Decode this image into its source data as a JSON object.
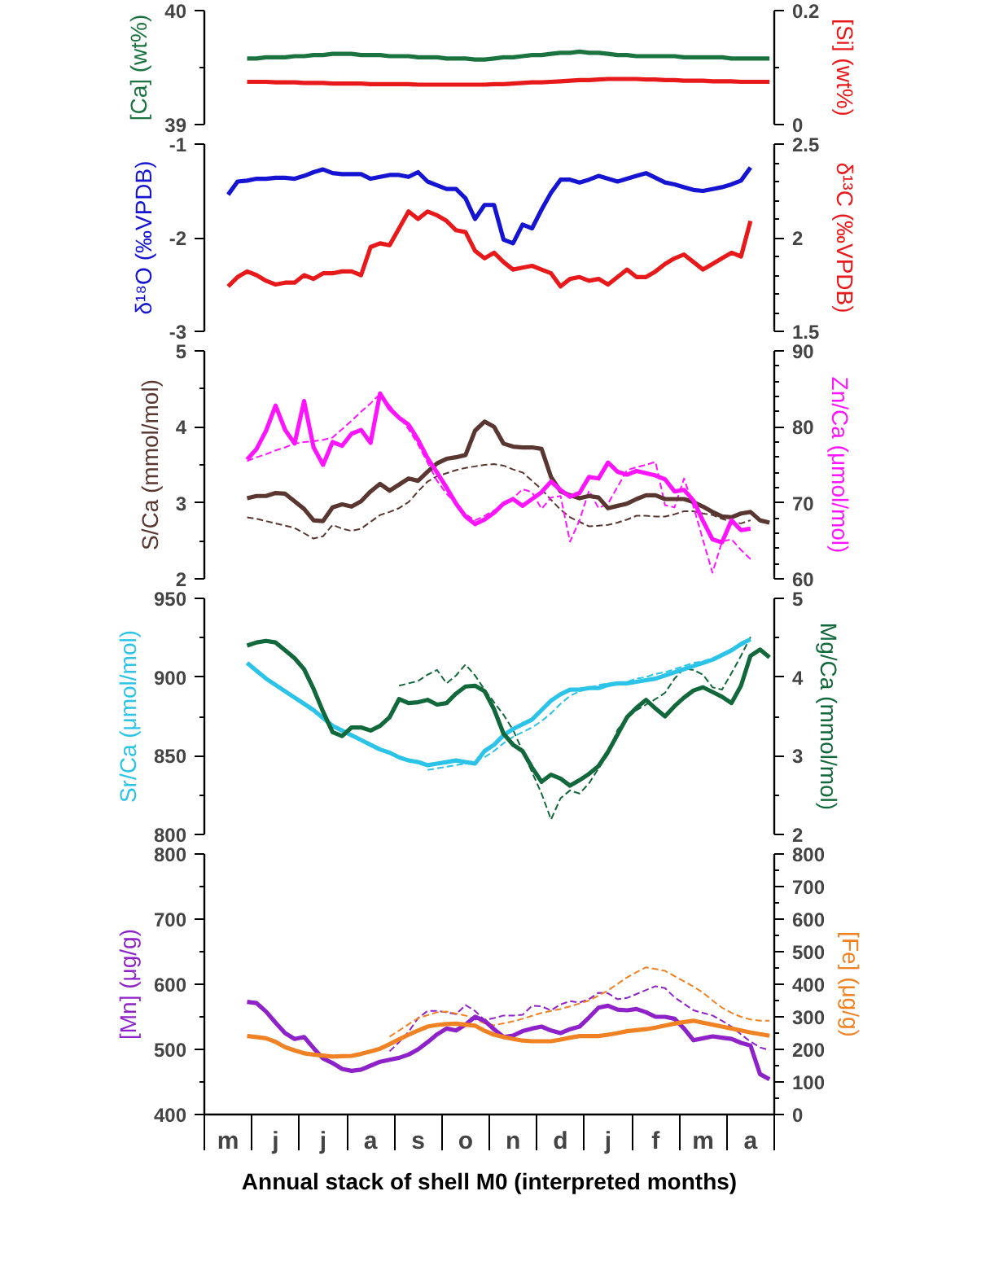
{
  "chart_data": [
    {
      "type": "line",
      "ylabel": "[Ca] (wt%)",
      "y2label": "[Si] (wt%)",
      "tick_labels": "y",
      "categories": [
        null,
        null,
        null,
        null,
        null,
        null,
        null,
        null,
        null,
        null,
        null,
        null,
        null,
        null,
        null,
        null,
        null,
        null,
        null,
        null,
        null,
        null,
        null,
        null,
        null,
        null,
        null,
        null,
        null,
        null,
        null,
        null,
        null,
        null,
        null,
        null,
        null,
        null,
        null,
        null,
        null,
        null,
        null,
        null,
        null,
        null,
        null,
        null,
        null,
        null,
        null,
        null,
        null,
        null,
        null,
        null,
        null,
        null,
        null,
        null
      ],
      "ylim": [
        39,
        40
      ],
      "yticks": [
        39,
        {
          "value": 39.5,
          "label": null
        },
        40
      ],
      "y2lim": [
        0,
        0.2
      ],
      "y2ticks": [
        0,
        {
          "value": 0.1,
          "label": null
        },
        0.2
      ],
      "series": [
        {
          "color": "#1b7340",
          "values": [
            null,
            null,
            null,
            null,
            39.58,
            39.58,
            39.59,
            39.59,
            39.59,
            39.6,
            39.6,
            39.61,
            39.61,
            39.62,
            39.62,
            39.62,
            39.61,
            39.61,
            39.61,
            39.6,
            39.6,
            39.6,
            39.59,
            39.59,
            39.59,
            39.58,
            39.58,
            39.58,
            39.57,
            39.57,
            39.58,
            39.59,
            39.59,
            39.6,
            39.61,
            39.61,
            39.62,
            39.63,
            39.63,
            39.64,
            39.63,
            39.63,
            39.62,
            39.61,
            39.61,
            39.6,
            39.6,
            39.6,
            39.6,
            39.6,
            39.59,
            39.59,
            39.59,
            39.59,
            39.59,
            39.58,
            39.58,
            39.58,
            39.58,
            39.58
          ]
        },
        {
          "color": "#e8191b",
          "axis": "y2",
          "values": [
            null,
            null,
            null,
            null,
            0.075,
            0.075,
            0.075,
            0.074,
            0.074,
            0.074,
            0.073,
            0.073,
            0.073,
            0.072,
            0.072,
            0.072,
            0.072,
            0.071,
            0.071,
            0.071,
            0.071,
            0.071,
            0.07,
            0.07,
            0.07,
            0.07,
            0.07,
            0.07,
            0.07,
            0.07,
            0.071,
            0.071,
            0.072,
            0.073,
            0.074,
            0.074,
            0.075,
            0.076,
            0.077,
            0.078,
            0.078,
            0.079,
            0.08,
            0.08,
            0.08,
            0.08,
            0.079,
            0.079,
            0.078,
            0.078,
            0.077,
            0.077,
            0.077,
            0.076,
            0.076,
            0.076,
            0.075,
            0.075,
            0.075,
            0.075
          ]
        }
      ]
    },
    {
      "type": "line",
      "ylabel": "δ¹⁸O (‰VPDB)",
      "y2label": "δ¹³C (‰VPDB)",
      "tick_labels": "y",
      "categories": [
        null,
        null,
        null,
        null,
        null,
        null,
        null,
        null,
        null,
        null,
        null,
        null,
        null,
        null,
        null,
        null,
        null,
        null,
        null,
        null,
        null,
        null,
        null,
        null,
        null,
        null,
        null,
        null,
        null,
        null,
        null,
        null,
        null,
        null,
        null,
        null,
        null,
        null,
        null,
        null,
        null,
        null,
        null,
        null,
        null,
        null,
        null,
        null,
        null,
        null,
        null,
        null,
        null,
        null,
        null,
        null,
        null,
        null,
        null,
        null
      ],
      "ylim": [
        -3,
        -1
      ],
      "yticks": [
        -3,
        -2,
        -1
      ],
      "y2lim": [
        1.5,
        2.5
      ],
      "y2ticks": [
        1.5,
        {
          "value": 1.6,
          "label": null
        },
        {
          "value": 1.7,
          "label": null
        },
        {
          "value": 1.8,
          "label": null
        },
        {
          "value": 1.9,
          "label": null
        },
        2,
        {
          "value": 2.1,
          "label": null
        },
        {
          "value": 2.2,
          "label": null
        },
        {
          "value": 2.3,
          "label": null
        },
        {
          "value": 2.4,
          "label": null
        },
        2.5
      ],
      "series": [
        {
          "color": "#1414d2",
          "values": [
            null,
            null,
            -1.54,
            -1.4,
            -1.39,
            -1.37,
            -1.37,
            -1.36,
            -1.36,
            -1.37,
            -1.34,
            -1.3,
            -1.27,
            -1.31,
            -1.32,
            -1.32,
            -1.32,
            -1.37,
            -1.35,
            -1.33,
            -1.33,
            -1.35,
            -1.3,
            -1.4,
            -1.44,
            -1.48,
            -1.48,
            -1.58,
            -1.8,
            -1.65,
            -1.65,
            -2.02,
            -2.06,
            -1.86,
            -1.9,
            -1.7,
            -1.52,
            -1.38,
            -1.38,
            -1.41,
            -1.38,
            -1.34,
            -1.37,
            -1.4,
            -1.37,
            -1.34,
            -1.31,
            -1.36,
            -1.41,
            -1.43,
            -1.46,
            -1.49,
            -1.5,
            -1.48,
            -1.46,
            -1.43,
            -1.39,
            -1.25,
            null,
            null
          ]
        },
        {
          "color": "#e8191b",
          "axis": "y2",
          "values": [
            null,
            null,
            1.74,
            1.79,
            1.82,
            1.8,
            1.77,
            1.75,
            1.76,
            1.76,
            1.8,
            1.78,
            1.81,
            1.81,
            1.82,
            1.82,
            1.8,
            1.95,
            1.97,
            1.96,
            2.05,
            2.14,
            2.1,
            2.14,
            2.12,
            2.09,
            2.04,
            2.03,
            1.93,
            1.89,
            1.92,
            1.87,
            1.83,
            1.84,
            1.85,
            1.83,
            1.81,
            1.74,
            1.78,
            1.79,
            1.77,
            1.78,
            1.75,
            1.79,
            1.83,
            1.79,
            1.79,
            1.82,
            1.86,
            1.89,
            1.91,
            1.87,
            1.83,
            1.86,
            1.89,
            1.92,
            1.9,
            2.09,
            null,
            null
          ]
        }
      ]
    },
    {
      "type": "line",
      "ylabel": "S/Ca (mmol/mol)",
      "y2label": "Zn/Ca (μmol/mol)",
      "tick_labels": "y",
      "categories": [
        null,
        null,
        null,
        null,
        null,
        null,
        null,
        null,
        null,
        null,
        null,
        null,
        null,
        null,
        null,
        null,
        null,
        null,
        null,
        null,
        null,
        null,
        null,
        null,
        null,
        null,
        null,
        null,
        null,
        null,
        null,
        null,
        null,
        null,
        null,
        null,
        null,
        null,
        null,
        null,
        null,
        null,
        null,
        null,
        null,
        null,
        null,
        null,
        null,
        null,
        null,
        null,
        null,
        null,
        null,
        null,
        null,
        null,
        null,
        null
      ],
      "ylim": [
        2,
        5
      ],
      "yticks": [
        2,
        {
          "value": 2.5,
          "label": null
        },
        3,
        {
          "value": 3.5,
          "label": null
        },
        4,
        {
          "value": 4.5,
          "label": null
        },
        5
      ],
      "y2lim": [
        60,
        90
      ],
      "y2ticks": [
        60,
        {
          "value": 62,
          "label": null
        },
        {
          "value": 64,
          "label": null
        },
        {
          "value": 66,
          "label": null
        },
        {
          "value": 68,
          "label": null
        },
        70,
        {
          "value": 72,
          "label": null
        },
        {
          "value": 74,
          "label": null
        },
        {
          "value": 76,
          "label": null
        },
        {
          "value": 78,
          "label": null
        },
        80,
        {
          "value": 82,
          "label": null
        },
        {
          "value": 84,
          "label": null
        },
        {
          "value": 86,
          "label": null
        },
        {
          "value": 88,
          "label": null
        },
        90
      ],
      "series": [
        {
          "color": "#5a3630",
          "line_style": "dashed",
          "values": [
            null,
            null,
            null,
            null,
            2.81,
            2.79,
            2.76,
            2.73,
            2.7,
            2.67,
            2.6,
            2.53,
            2.56,
            2.71,
            2.66,
            2.63,
            2.66,
            2.75,
            2.84,
            2.88,
            2.93,
            3.01,
            3.15,
            3.28,
            3.35,
            3.39,
            3.43,
            3.46,
            3.48,
            3.5,
            3.51,
            3.49,
            3.44,
            3.4,
            3.29,
            3.18,
            3.04,
            2.91,
            2.81,
            2.75,
            2.69,
            2.7,
            2.71,
            2.74,
            2.78,
            2.83,
            2.83,
            2.82,
            2.82,
            2.85,
            2.89,
            2.89,
            2.86,
            2.84,
            2.79,
            2.75,
            2.73,
            2.77,
            null,
            null
          ]
        },
        {
          "color": "#ff14ff",
          "line_style": "dashed",
          "axis": "y2",
          "values": [
            null,
            null,
            null,
            null,
            75.5,
            76.0,
            76.4,
            76.9,
            77.3,
            77.8,
            78.0,
            78.1,
            78.3,
            78.6,
            79.7,
            80.8,
            82.0,
            83.1,
            84.3,
            82.8,
            81.3,
            79.7,
            77.7,
            75.3,
            72.9,
            71.2,
            69.9,
            68.5,
            67.7,
            68.3,
            69.0,
            69.7,
            70.6,
            71.8,
            71.4,
            69.2,
            70.7,
            70.9,
            64.9,
            67.7,
            71.6,
            69.3,
            69.9,
            72.1,
            74.3,
            74.7,
            75.0,
            75.4,
            69.7,
            69.4,
            73.2,
            69.5,
            65.1,
            60.8,
            64.9,
            65.2,
            63.8,
            62.6,
            null,
            null
          ]
        },
        {
          "color": "#5a3630",
          "values": [
            null,
            null,
            null,
            null,
            3.06,
            3.09,
            3.09,
            3.13,
            3.12,
            3.02,
            2.92,
            2.77,
            2.76,
            2.94,
            2.98,
            2.95,
            3.02,
            3.15,
            3.25,
            3.16,
            3.24,
            3.32,
            3.29,
            3.41,
            3.52,
            3.58,
            3.6,
            3.63,
            3.95,
            4.07,
            4.0,
            3.78,
            3.74,
            3.73,
            3.73,
            3.71,
            3.34,
            3.15,
            3.1,
            3.06,
            3.09,
            3.07,
            2.93,
            2.96,
            2.99,
            3.05,
            3.1,
            3.1,
            3.05,
            3.05,
            3.05,
            3.01,
            2.95,
            2.88,
            2.82,
            2.81,
            2.86,
            2.88,
            2.77,
            2.74
          ]
        },
        {
          "color": "#ff14ff",
          "axis": "y2",
          "values": [
            null,
            null,
            null,
            null,
            75.7,
            77.1,
            79.5,
            82.8,
            79.6,
            77.8,
            83.4,
            77.3,
            75.0,
            78.0,
            77.5,
            79.1,
            79.6,
            77.9,
            84.4,
            82.4,
            81.2,
            80.3,
            78.3,
            75.9,
            74.0,
            72.0,
            69.9,
            68.2,
            67.2,
            67.8,
            68.7,
            69.9,
            70.5,
            69.6,
            70.5,
            71.4,
            72.8,
            71.7,
            70.8,
            71.3,
            73.4,
            73.2,
            75.3,
            74.1,
            73.7,
            74.2,
            73.9,
            73.6,
            73.1,
            71.5,
            71.7,
            70.3,
            67.6,
            65.2,
            64.8,
            67.7,
            66.4,
            66.6,
            null,
            null
          ]
        }
      ]
    },
    {
      "type": "line",
      "ylabel": "Sr/Ca (μmol/mol)",
      "y2label": "Mg/Ca (mmol/mol)",
      "tick_labels": "y",
      "categories": [
        null,
        null,
        null,
        null,
        null,
        null,
        null,
        null,
        null,
        null,
        null,
        null,
        null,
        null,
        null,
        null,
        null,
        null,
        null,
        null,
        null,
        null,
        null,
        null,
        null,
        null,
        null,
        null,
        null,
        null,
        null,
        null,
        null,
        null,
        null,
        null,
        null,
        null,
        null,
        null,
        null,
        null,
        null,
        null,
        null,
        null,
        null,
        null,
        null,
        null,
        null,
        null,
        null,
        null,
        null,
        null,
        null,
        null,
        null,
        null
      ],
      "ylim": [
        800,
        950
      ],
      "yticks": [
        800,
        {
          "value": 825,
          "label": null
        },
        850,
        {
          "value": 875,
          "label": null
        },
        900,
        {
          "value": 925,
          "label": null
        },
        950
      ],
      "y2lim": [
        2,
        5
      ],
      "y2ticks": [
        2,
        {
          "value": 2.5,
          "label": null
        },
        3,
        {
          "value": 3.5,
          "label": null
        },
        4,
        {
          "value": 4.5,
          "label": null
        },
        5
      ],
      "series": [
        {
          "color": "#2bc3e8",
          "line_style": "dashed",
          "values": [
            null,
            null,
            null,
            null,
            null,
            null,
            null,
            null,
            null,
            null,
            null,
            null,
            null,
            null,
            null,
            null,
            null,
            null,
            null,
            null,
            null,
            null,
            null,
            841,
            842,
            843,
            844,
            845,
            847,
            849,
            853,
            858,
            862,
            865,
            868,
            872,
            877,
            883,
            888,
            891,
            893,
            895,
            896,
            896,
            897,
            899,
            900,
            902,
            903,
            905,
            907,
            909,
            910,
            912,
            914,
            917,
            920,
            924,
            null,
            null
          ]
        },
        {
          "color": "#11683a",
          "line_style": "dashed",
          "axis": "y2",
          "values": [
            null,
            null,
            null,
            null,
            null,
            null,
            null,
            null,
            null,
            null,
            null,
            null,
            null,
            null,
            null,
            null,
            null,
            null,
            null,
            null,
            3.89,
            3.92,
            3.95,
            4.03,
            4.09,
            3.92,
            4.02,
            4.16,
            4.02,
            3.84,
            3.68,
            3.52,
            3.33,
            3.06,
            2.79,
            2.52,
            2.19,
            2.46,
            2.56,
            2.52,
            2.65,
            2.84,
            3.02,
            3.33,
            3.48,
            3.58,
            3.65,
            3.72,
            3.8,
            3.98,
            4.11,
            4.09,
            4.03,
            3.87,
            3.84,
            4.05,
            4.27,
            4.51,
            null,
            null
          ]
        },
        {
          "color": "#2bc3e8",
          "values": [
            null,
            null,
            null,
            null,
            909,
            904,
            899,
            895,
            891,
            887,
            883,
            879,
            874,
            869,
            866,
            863,
            860,
            857,
            854,
            852,
            849,
            847,
            846,
            844,
            845,
            846,
            847,
            846,
            845,
            853,
            857,
            863,
            867,
            870,
            873,
            879,
            885,
            889,
            892,
            892,
            893,
            893,
            895,
            896,
            896,
            897,
            898,
            899,
            901,
            903,
            905,
            907,
            909,
            911,
            914,
            917,
            921,
            924,
            null,
            null
          ]
        },
        {
          "color": "#11683a",
          "axis": "y2",
          "values": [
            null,
            null,
            null,
            null,
            4.4,
            4.44,
            4.46,
            4.44,
            4.34,
            4.24,
            4.1,
            3.85,
            3.56,
            3.3,
            3.25,
            3.36,
            3.36,
            3.32,
            3.38,
            3.49,
            3.72,
            3.67,
            3.68,
            3.71,
            3.65,
            3.67,
            3.79,
            3.88,
            3.89,
            3.82,
            3.59,
            3.28,
            3.14,
            3.06,
            2.85,
            2.67,
            2.76,
            2.71,
            2.62,
            2.69,
            2.77,
            2.87,
            3.05,
            3.27,
            3.49,
            3.61,
            3.71,
            3.6,
            3.5,
            3.63,
            3.74,
            3.83,
            3.87,
            3.81,
            3.75,
            3.67,
            3.89,
            4.27,
            4.35,
            4.25
          ]
        }
      ]
    },
    {
      "type": "line",
      "xlabel": "Annual stack of shell M0 (interpreted months)",
      "ylabel": "[Mn] (μg/g)",
      "y2label": "[Fe] (μg/g)",
      "categories": [
        null,
        null,
        "m",
        null,
        null,
        null,
        null,
        "j",
        null,
        null,
        null,
        null,
        "j",
        null,
        null,
        null,
        null,
        "a",
        null,
        null,
        null,
        null,
        "s",
        null,
        null,
        null,
        null,
        "o",
        null,
        null,
        null,
        null,
        "n",
        null,
        null,
        null,
        null,
        "d",
        null,
        null,
        null,
        null,
        "j",
        null,
        null,
        null,
        null,
        "f",
        null,
        null,
        null,
        null,
        "m",
        null,
        null,
        null,
        null,
        "a",
        null,
        null
      ],
      "ylim": [
        400,
        800
      ],
      "yticks": [
        400,
        {
          "value": 450,
          "label": null
        },
        500,
        {
          "value": 550,
          "label": null
        },
        600,
        {
          "value": 650,
          "label": null
        },
        700,
        {
          "value": 750,
          "label": null
        },
        800
      ],
      "y2lim": [
        0,
        800
      ],
      "y2ticks": [
        0,
        {
          "value": 50,
          "label": null
        },
        100,
        {
          "value": 150,
          "label": null
        },
        200,
        {
          "value": 250,
          "label": null
        },
        300,
        {
          "value": 350,
          "label": null
        },
        400,
        {
          "value": 450,
          "label": null
        },
        500,
        {
          "value": 550,
          "label": null
        },
        600,
        {
          "value": 650,
          "label": null
        },
        700,
        {
          "value": 750,
          "label": null
        },
        800
      ],
      "series": [
        {
          "color": "#8e22c8",
          "line_style": "dashed",
          "values": [
            null,
            null,
            null,
            null,
            null,
            null,
            null,
            null,
            null,
            null,
            null,
            null,
            null,
            null,
            null,
            null,
            null,
            null,
            null,
            497,
            511,
            527,
            548,
            559,
            559,
            557,
            554,
            568,
            559,
            545,
            548,
            552,
            552,
            553,
            567,
            566,
            560,
            569,
            574,
            572,
            577,
            587,
            586,
            577,
            579,
            585,
            591,
            597,
            594,
            580,
            570,
            560,
            556,
            552,
            544,
            535,
            523,
            512,
            503,
            499
          ]
        },
        {
          "color": "#f08224",
          "line_style": "dashed",
          "axis": "y2",
          "values": [
            null,
            null,
            null,
            null,
            null,
            null,
            null,
            null,
            null,
            null,
            null,
            null,
            null,
            null,
            null,
            null,
            null,
            null,
            null,
            239,
            258,
            277,
            296,
            305,
            314,
            316,
            310,
            304,
            292,
            280,
            274,
            280,
            286,
            294,
            303,
            312,
            318,
            324,
            332,
            341,
            350,
            365,
            381,
            401,
            421,
            437,
            452,
            447,
            441,
            425,
            409,
            393,
            374,
            350,
            328,
            312,
            300,
            292,
            288,
            288
          ]
        },
        {
          "color": "#8e22c8",
          "values": [
            null,
            null,
            null,
            null,
            573,
            571,
            558,
            541,
            525,
            516,
            519,
            502,
            486,
            479,
            470,
            467,
            469,
            475,
            481,
            484,
            487,
            492,
            500,
            511,
            523,
            532,
            529,
            538,
            550,
            544,
            531,
            519,
            521,
            528,
            532,
            535,
            529,
            525,
            531,
            535,
            549,
            564,
            567,
            561,
            560,
            562,
            557,
            550,
            550,
            547,
            532,
            514,
            517,
            520,
            518,
            516,
            510,
            506,
            462,
            454
          ]
        },
        {
          "color": "#f08224",
          "axis": "y2",
          "values": [
            null,
            null,
            null,
            null,
            241,
            238,
            234,
            223,
            207,
            197,
            188,
            184,
            181,
            178,
            179,
            180,
            186,
            194,
            202,
            216,
            231,
            245,
            258,
            270,
            275,
            278,
            279,
            276,
            273,
            257,
            245,
            238,
            232,
            227,
            225,
            225,
            225,
            230,
            236,
            241,
            241,
            241,
            245,
            250,
            256,
            259,
            262,
            267,
            273,
            279,
            284,
            288,
            282,
            276,
            270,
            264,
            258,
            252,
            247,
            242
          ]
        }
      ]
    }
  ]
}
